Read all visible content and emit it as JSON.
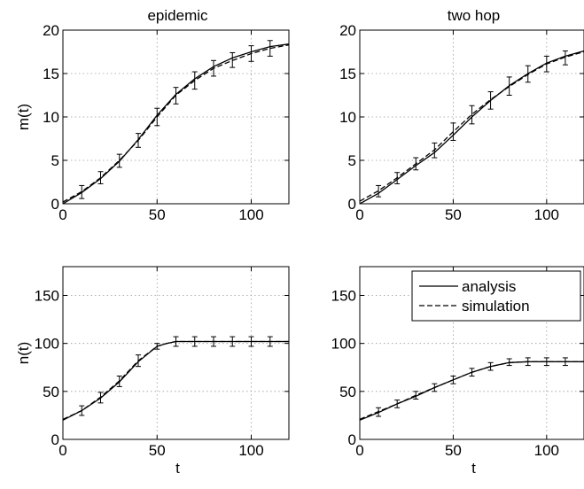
{
  "chart_data": [
    {
      "type": "line",
      "title": "epidemic",
      "xlabel": "",
      "ylabel": "m(t)",
      "xlim": [
        0,
        120
      ],
      "ylim": [
        0,
        20
      ],
      "xticks": [
        0,
        50,
        100
      ],
      "yticks": [
        0,
        5,
        10,
        15,
        20
      ],
      "grid": true,
      "series": [
        {
          "name": "analysis",
          "style": "solid",
          "x": [
            0,
            10,
            20,
            30,
            40,
            50,
            60,
            70,
            80,
            90,
            100,
            110,
            120
          ],
          "y": [
            0.0,
            1.3,
            2.9,
            4.9,
            7.4,
            10.2,
            12.6,
            14.4,
            15.8,
            16.8,
            17.5,
            18.1,
            18.4
          ]
        },
        {
          "name": "simulation",
          "style": "dashed",
          "x": [
            0,
            10,
            20,
            30,
            40,
            50,
            60,
            70,
            80,
            90,
            100,
            110,
            120
          ],
          "y": [
            0.2,
            1.4,
            3.0,
            5.0,
            7.3,
            10.0,
            12.5,
            14.2,
            15.6,
            16.5,
            17.3,
            17.9,
            18.3
          ],
          "errorbars": [
            {
              "x": 10,
              "low": 0.6,
              "high": 2.1
            },
            {
              "x": 20,
              "low": 2.3,
              "high": 3.7
            },
            {
              "x": 30,
              "low": 4.2,
              "high": 5.7
            },
            {
              "x": 40,
              "low": 6.5,
              "high": 8.1
            },
            {
              "x": 50,
              "low": 9.0,
              "high": 11.0
            },
            {
              "x": 60,
              "low": 11.5,
              "high": 13.4
            },
            {
              "x": 70,
              "low": 13.2,
              "high": 15.2
            },
            {
              "x": 80,
              "low": 14.7,
              "high": 16.5
            },
            {
              "x": 90,
              "low": 15.7,
              "high": 17.4
            },
            {
              "x": 100,
              "low": 16.4,
              "high": 18.2
            },
            {
              "x": 110,
              "low": 17.0,
              "high": 18.8
            }
          ]
        }
      ]
    },
    {
      "type": "line",
      "title": "two hop",
      "xlabel": "",
      "ylabel": "",
      "xlim": [
        0,
        120
      ],
      "ylim": [
        0,
        20
      ],
      "xticks": [
        0,
        50,
        100
      ],
      "yticks": [
        0,
        5,
        10,
        15,
        20
      ],
      "grid": true,
      "series": [
        {
          "name": "analysis",
          "style": "solid",
          "x": [
            0,
            10,
            20,
            30,
            40,
            50,
            60,
            70,
            80,
            90,
            100,
            110,
            120
          ],
          "y": [
            0.0,
            1.2,
            2.8,
            4.4,
            5.9,
            7.9,
            10.0,
            11.9,
            13.6,
            15.0,
            16.2,
            17.0,
            17.6
          ]
        },
        {
          "name": "simulation",
          "style": "dashed",
          "x": [
            0,
            10,
            20,
            30,
            40,
            50,
            60,
            70,
            80,
            90,
            100,
            110,
            120
          ],
          "y": [
            0.3,
            1.5,
            3.0,
            4.6,
            6.2,
            8.3,
            10.3,
            12.0,
            13.5,
            14.9,
            16.1,
            16.9,
            17.5
          ],
          "errorbars": [
            {
              "x": 10,
              "low": 0.8,
              "high": 2.1
            },
            {
              "x": 20,
              "low": 2.3,
              "high": 3.6
            },
            {
              "x": 30,
              "low": 3.9,
              "high": 5.3
            },
            {
              "x": 40,
              "low": 5.3,
              "high": 7.0
            },
            {
              "x": 50,
              "low": 7.3,
              "high": 9.3
            },
            {
              "x": 60,
              "low": 9.2,
              "high": 11.3
            },
            {
              "x": 70,
              "low": 10.9,
              "high": 12.9
            },
            {
              "x": 80,
              "low": 12.5,
              "high": 14.6
            },
            {
              "x": 90,
              "low": 14.0,
              "high": 15.9
            },
            {
              "x": 100,
              "low": 15.2,
              "high": 17.0
            },
            {
              "x": 110,
              "low": 16.0,
              "high": 17.6
            }
          ]
        }
      ]
    },
    {
      "type": "line",
      "title": "",
      "xlabel": "t",
      "ylabel": "n(t)",
      "xlim": [
        0,
        120
      ],
      "ylim": [
        0,
        180
      ],
      "xticks": [
        0,
        50,
        100
      ],
      "yticks": [
        0,
        50,
        100,
        150
      ],
      "grid": true,
      "series": [
        {
          "name": "analysis",
          "style": "solid",
          "x": [
            0,
            10,
            20,
            30,
            40,
            50,
            55,
            60,
            70,
            80,
            90,
            100,
            110,
            120
          ],
          "y": [
            20,
            30,
            43,
            60,
            81,
            97,
            100,
            102,
            102,
            102,
            102,
            102,
            102,
            102
          ]
        },
        {
          "name": "simulation",
          "style": "dashed",
          "x": [
            0,
            10,
            20,
            30,
            40,
            50,
            55,
            60,
            70,
            80,
            90,
            100,
            110,
            120
          ],
          "y": [
            21,
            30,
            44,
            61,
            82,
            97,
            100,
            102,
            102,
            102,
            102,
            102,
            102,
            102
          ],
          "errorbars": [
            {
              "x": 10,
              "low": 25,
              "high": 35
            },
            {
              "x": 20,
              "low": 38,
              "high": 49
            },
            {
              "x": 30,
              "low": 55,
              "high": 66
            },
            {
              "x": 40,
              "low": 76,
              "high": 88
            },
            {
              "x": 50,
              "low": 94,
              "high": 100
            },
            {
              "x": 60,
              "low": 97,
              "high": 107
            },
            {
              "x": 70,
              "low": 97,
              "high": 107
            },
            {
              "x": 80,
              "low": 97,
              "high": 107
            },
            {
              "x": 90,
              "low": 97,
              "high": 107
            },
            {
              "x": 100,
              "low": 97,
              "high": 107
            },
            {
              "x": 110,
              "low": 97,
              "high": 107
            }
          ]
        }
      ]
    },
    {
      "type": "line",
      "title": "",
      "xlabel": "t",
      "ylabel": "",
      "xlim": [
        0,
        120
      ],
      "ylim": [
        0,
        180
      ],
      "xticks": [
        0,
        50,
        100
      ],
      "yticks": [
        0,
        50,
        100,
        150
      ],
      "grid": true,
      "legend": {
        "position": "top-right",
        "entries": [
          "analysis",
          "simulation"
        ]
      },
      "series": [
        {
          "name": "analysis",
          "style": "solid",
          "x": [
            0,
            10,
            20,
            30,
            40,
            50,
            60,
            70,
            80,
            90,
            100,
            110,
            120
          ],
          "y": [
            20,
            28,
            37,
            45,
            54,
            62,
            70,
            76,
            80,
            81,
            81,
            81,
            81
          ]
        },
        {
          "name": "simulation",
          "style": "dashed",
          "x": [
            0,
            10,
            20,
            30,
            40,
            50,
            60,
            70,
            80,
            90,
            100,
            110,
            120
          ],
          "y": [
            21,
            29,
            37,
            46,
            54,
            62,
            70,
            76,
            80,
            81,
            81,
            81,
            81
          ],
          "errorbars": [
            {
              "x": 10,
              "low": 24,
              "high": 33
            },
            {
              "x": 20,
              "low": 33,
              "high": 41
            },
            {
              "x": 30,
              "low": 42,
              "high": 50
            },
            {
              "x": 40,
              "low": 50,
              "high": 58
            },
            {
              "x": 50,
              "low": 58,
              "high": 66
            },
            {
              "x": 60,
              "low": 66,
              "high": 74
            },
            {
              "x": 70,
              "low": 72,
              "high": 80
            },
            {
              "x": 80,
              "low": 77,
              "high": 84
            },
            {
              "x": 90,
              "low": 77,
              "high": 85
            },
            {
              "x": 100,
              "low": 77,
              "high": 85
            },
            {
              "x": 110,
              "low": 77,
              "high": 85
            }
          ]
        }
      ]
    }
  ]
}
